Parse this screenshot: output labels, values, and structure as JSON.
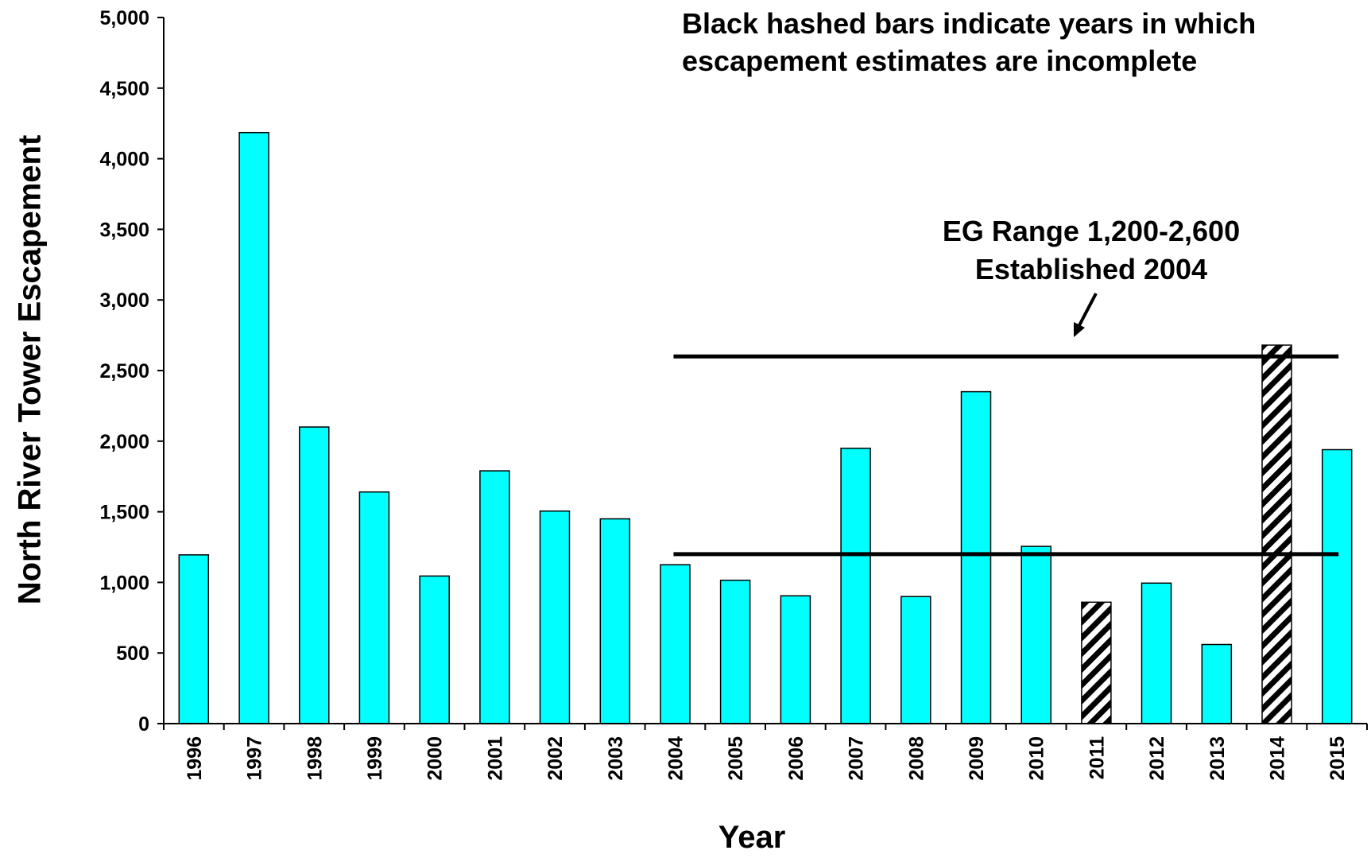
{
  "chart_data": {
    "type": "bar",
    "xlabel": "Year",
    "ylabel": "North River Tower Escapement",
    "ylim": [
      0,
      5000
    ],
    "yticks": [
      0,
      500,
      1000,
      1500,
      2000,
      2500,
      3000,
      3500,
      4000,
      4500,
      5000
    ],
    "ytick_labels": [
      "0",
      "500",
      "1,000",
      "1,500",
      "2,000",
      "2,500",
      "3,000",
      "3,500",
      "4,000",
      "4,500",
      "5,000"
    ],
    "categories": [
      "1996",
      "1997",
      "1998",
      "1999",
      "2000",
      "2001",
      "2002",
      "2003",
      "2004",
      "2005",
      "2006",
      "2007",
      "2008",
      "2009",
      "2010",
      "2011",
      "2012",
      "2013",
      "2014",
      "2015"
    ],
    "values": [
      1195,
      4185,
      2100,
      1640,
      1045,
      1790,
      1505,
      1450,
      1125,
      1015,
      905,
      1950,
      900,
      2350,
      1255,
      860,
      995,
      560,
      2680,
      1940
    ],
    "incomplete": [
      false,
      false,
      false,
      false,
      false,
      false,
      false,
      false,
      false,
      false,
      false,
      false,
      false,
      false,
      false,
      true,
      false,
      false,
      true,
      false
    ],
    "complete_color": "#00FFFF",
    "incomplete_pattern": "black-diagonal-hatch",
    "goal_range": {
      "lower": 1200,
      "upper": 2600,
      "start_category": "2004",
      "end_category": "2015",
      "line_color": "#000000"
    },
    "annotations": {
      "note_line1": "Black hashed bars indicate years in which",
      "note_line2": "escapement estimates are incomplete",
      "eg_line1": "EG Range 1,200-2,600",
      "eg_line2": "Established 2004"
    },
    "grid": false,
    "legend": "none"
  }
}
